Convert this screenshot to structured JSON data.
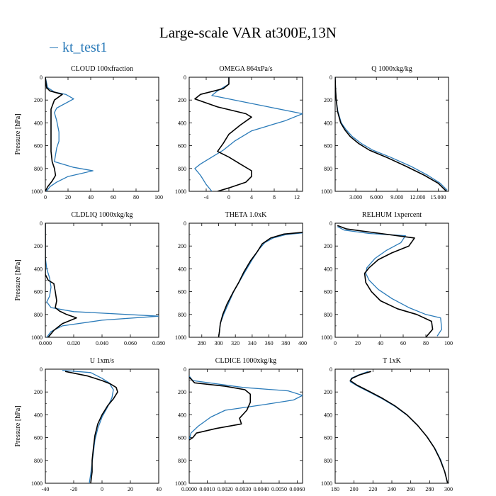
{
  "figure": {
    "title": "Large-scale VAR at300E,13N"
  },
  "legend": {
    "label": "kt_test1",
    "color": "#2b7bb9"
  },
  "colors": {
    "series_1": "#2b7bb9",
    "series_2": "#000000"
  },
  "chart_data": [
    {
      "type": "line",
      "title": "CLOUD  100xfraction",
      "ylabel": "Pressure [hPa]",
      "xlim": [
        0,
        100
      ],
      "ylim": [
        1000,
        0
      ],
      "xticks": [
        "0",
        "20",
        "40",
        "60",
        "80",
        "100"
      ],
      "yticks": [
        "0",
        "200",
        "400",
        "600",
        "800",
        "1000"
      ],
      "series": [
        {
          "name": "kt_test1",
          "color": "#2b7bb9",
          "x": [
            0,
            2,
            8,
            18,
            25,
            10,
            8,
            10,
            12,
            12,
            10,
            8,
            25,
            42,
            20,
            10,
            4,
            1
          ],
          "y": [
            0,
            90,
            130,
            150,
            190,
            270,
            310,
            380,
            480,
            560,
            620,
            740,
            790,
            820,
            870,
            920,
            960,
            1000
          ]
        },
        {
          "color": "#000000",
          "x": [
            0,
            1,
            4,
            15,
            8,
            5,
            5,
            5,
            5,
            5,
            6,
            8,
            9,
            6,
            2,
            0
          ],
          "y": [
            0,
            90,
            120,
            150,
            200,
            280,
            350,
            450,
            560,
            650,
            740,
            800,
            860,
            910,
            960,
            1000
          ]
        }
      ]
    },
    {
      "type": "line",
      "title": "OMEGA  864xPa/s",
      "xlim": [
        -7,
        13
      ],
      "ylim": [
        1000,
        0
      ],
      "xticks": [
        "-4",
        "0",
        "4",
        "8",
        "12"
      ],
      "yticks": [
        "0",
        "200",
        "400",
        "600",
        "800",
        "1000"
      ],
      "series": [
        {
          "name": "kt_test1",
          "color": "#2b7bb9",
          "x": [
            0,
            0,
            -2,
            -3,
            1,
            7,
            13,
            10,
            4,
            1,
            -1,
            -3,
            -5,
            -6,
            -5,
            -4,
            -3
          ],
          "y": [
            0,
            60,
            120,
            160,
            200,
            260,
            320,
            380,
            470,
            560,
            640,
            700,
            760,
            800,
            860,
            940,
            1000
          ]
        },
        {
          "color": "#000000",
          "x": [
            0,
            0,
            -1,
            -5,
            -6,
            -2,
            3,
            4,
            2,
            0,
            -1,
            -2,
            0,
            2,
            4,
            4,
            3,
            0,
            -2
          ],
          "y": [
            0,
            60,
            100,
            150,
            190,
            260,
            320,
            350,
            420,
            500,
            580,
            650,
            700,
            760,
            820,
            870,
            920,
            970,
            1000
          ]
        }
      ]
    },
    {
      "type": "line",
      "title": "Q  1000xkg/kg",
      "xlim": [
        0,
        16.5
      ],
      "ylim": [
        1000,
        0
      ],
      "xticks": [
        "3.000",
        "6.000",
        "9.000",
        "12.000",
        "15.000"
      ],
      "yticks": [
        "0",
        "200",
        "400",
        "600",
        "800",
        "1000"
      ],
      "series": [
        {
          "name": "kt_test1",
          "color": "#2b7bb9",
          "x": [
            0,
            0.05,
            0.15,
            0.4,
            0.9,
            1.6,
            2.5,
            3.8,
            5.5,
            8,
            11,
            13.5,
            15.3,
            16.3
          ],
          "y": [
            0,
            100,
            200,
            300,
            400,
            460,
            520,
            580,
            640,
            700,
            780,
            860,
            930,
            990
          ]
        },
        {
          "color": "#000000",
          "x": [
            0,
            0.05,
            0.15,
            0.35,
            0.8,
            1.4,
            2.2,
            3.4,
            5,
            7.4,
            10.3,
            13,
            15,
            16.2
          ],
          "y": [
            0,
            100,
            200,
            300,
            400,
            460,
            520,
            580,
            640,
            700,
            780,
            860,
            930,
            1000
          ]
        }
      ]
    },
    {
      "type": "line",
      "title": "CLDLIQ  1000xkg/kg",
      "ylabel": "Pressure [hPa]",
      "xlim": [
        0,
        0.08
      ],
      "ylim": [
        1000,
        0
      ],
      "xticks": [
        "0.000",
        "0.020",
        "0.040",
        "0.060",
        "0.080"
      ],
      "yticks": [
        "0",
        "200",
        "400",
        "600",
        "800",
        "1000"
      ],
      "series": [
        {
          "name": "kt_test1",
          "color": "#2b7bb9",
          "x": [
            0,
            0,
            0.001,
            0.003,
            0.004,
            0.003,
            0.001,
            0.004,
            0.02,
            0.08,
            0.04,
            0.012,
            0.004,
            0.001
          ],
          "y": [
            0,
            300,
            400,
            480,
            560,
            640,
            690,
            740,
            775,
            815,
            850,
            900,
            950,
            1000
          ]
        },
        {
          "color": "#000000",
          "x": [
            0,
            0,
            0.002,
            0.006,
            0.007,
            0.008,
            0.007,
            0.01,
            0.015,
            0.022,
            0.012,
            0.006,
            0.002
          ],
          "y": [
            0,
            450,
            500,
            530,
            600,
            680,
            740,
            770,
            800,
            830,
            880,
            940,
            1000
          ]
        }
      ]
    },
    {
      "type": "line",
      "title": "THETA  1.0xK",
      "xlim": [
        265,
        400
      ],
      "ylim": [
        1000,
        0
      ],
      "xticks": [
        "280",
        "300",
        "320",
        "340",
        "360",
        "380",
        "400"
      ],
      "yticks": [
        "0",
        "200",
        "400",
        "600",
        "800",
        "1000"
      ],
      "series": [
        {
          "name": "kt_test1",
          "color": "#2b7bb9",
          "x": [
            400,
            380,
            365,
            355,
            348,
            340,
            332,
            325,
            318,
            312,
            306,
            302,
            301,
            300
          ],
          "y": [
            85,
            100,
            130,
            170,
            230,
            320,
            420,
            510,
            600,
            700,
            800,
            880,
            950,
            1000
          ]
        },
        {
          "color": "#000000",
          "x": [
            400,
            378,
            362,
            352,
            346,
            338,
            330,
            324,
            317,
            310,
            305,
            302,
            301,
            300
          ],
          "y": [
            80,
            95,
            130,
            180,
            250,
            330,
            430,
            520,
            610,
            710,
            800,
            880,
            950,
            1000
          ]
        }
      ]
    },
    {
      "type": "line",
      "title": "RELHUM  1xpercent",
      "xlim": [
        0,
        100
      ],
      "ylim": [
        1000,
        0
      ],
      "xticks": [
        "0",
        "20",
        "40",
        "60",
        "80",
        "100"
      ],
      "yticks": [
        "0",
        "200",
        "400",
        "600",
        "800",
        "1000"
      ],
      "series": [
        {
          "name": "kt_test1",
          "color": "#2b7bb9",
          "x": [
            2,
            8,
            30,
            62,
            58,
            45,
            35,
            28,
            27,
            30,
            38,
            50,
            65,
            80,
            93,
            94,
            90
          ],
          "y": [
            30,
            60,
            90,
            110,
            170,
            240,
            310,
            390,
            440,
            500,
            580,
            660,
            740,
            800,
            830,
            930,
            990
          ]
        },
        {
          "color": "#000000",
          "x": [
            2,
            10,
            40,
            70,
            65,
            50,
            38,
            30,
            26,
            27,
            32,
            40,
            55,
            72,
            85,
            86,
            80
          ],
          "y": [
            20,
            50,
            90,
            130,
            200,
            260,
            320,
            390,
            440,
            520,
            600,
            680,
            750,
            800,
            860,
            930,
            1000
          ]
        }
      ]
    },
    {
      "type": "line",
      "title": "U  1xm/s",
      "ylabel": "Pressure [hPa]",
      "xlim": [
        -40,
        40
      ],
      "ylim": [
        1000,
        0
      ],
      "xticks": [
        "-40",
        "-20",
        "0",
        "20",
        "40"
      ],
      "yticks": [
        "0",
        "200",
        "400",
        "600",
        "800",
        "1000"
      ],
      "series": [
        {
          "name": "kt_test1",
          "color": "#2b7bb9",
          "x": [
            -28,
            -8,
            0,
            5,
            8,
            7,
            4,
            0,
            -3,
            -5,
            -6,
            -7,
            -8,
            -9
          ],
          "y": [
            10,
            30,
            80,
            120,
            180,
            250,
            330,
            420,
            520,
            620,
            720,
            820,
            920,
            1000
          ]
        },
        {
          "color": "#000000",
          "x": [
            -26,
            -10,
            0,
            6,
            10,
            11,
            8,
            4,
            0,
            -3,
            -5,
            -6,
            -7,
            -7,
            -8
          ],
          "y": [
            20,
            60,
            100,
            130,
            160,
            200,
            260,
            320,
            400,
            480,
            580,
            680,
            800,
            900,
            1000
          ]
        }
      ]
    },
    {
      "type": "line",
      "title": "CLDICE  1000xkg/kg",
      "xlim": [
        0,
        0.0063
      ],
      "ylim": [
        1000,
        0
      ],
      "xticks": [
        "0.0000",
        "0.0010",
        "0.0020",
        "0.0030",
        "0.0040",
        "0.0050",
        "0.0060"
      ],
      "yticks": [
        "0",
        "200",
        "400",
        "600",
        "800",
        "1000"
      ],
      "series": [
        {
          "name": "kt_test1",
          "color": "#2b7bb9",
          "x": [
            0,
            0.0002,
            0.003,
            0.0055,
            0.0063,
            0.0058,
            0.0042,
            0.002,
            0.0012,
            0.0005,
            0.0001,
            0
          ],
          "y": [
            60,
            100,
            160,
            190,
            230,
            270,
            310,
            360,
            420,
            500,
            560,
            620
          ]
        },
        {
          "color": "#000000",
          "x": [
            0,
            0.0003,
            0.002,
            0.0031,
            0.0034,
            0.0034,
            0.0032,
            0.0028,
            0.0029,
            0.0015,
            0.0004,
            0.0002,
            0
          ],
          "y": [
            70,
            120,
            150,
            180,
            220,
            290,
            360,
            430,
            480,
            520,
            560,
            600,
            620
          ]
        }
      ]
    },
    {
      "type": "line",
      "title": "T  1xK",
      "xlim": [
        180,
        300
      ],
      "ylim": [
        1000,
        0
      ],
      "xticks": [
        "180",
        "200",
        "220",
        "240",
        "260",
        "280",
        "300"
      ],
      "yticks": [
        "0",
        "200",
        "400",
        "600",
        "800",
        "1000"
      ],
      "series": [
        {
          "name": "kt_test1",
          "color": "#2b7bb9",
          "x": [
            215,
            205,
            197,
            196,
            204,
            216,
            230,
            244,
            257,
            268,
            278,
            286,
            292,
            296,
            299
          ],
          "y": [
            20,
            50,
            80,
            110,
            150,
            200,
            260,
            330,
            410,
            500,
            600,
            700,
            800,
            900,
            1000
          ]
        },
        {
          "color": "#000000",
          "x": [
            218,
            206,
            198,
            196,
            203,
            215,
            229,
            243,
            256,
            267,
            277,
            285,
            291,
            296,
            299
          ],
          "y": [
            20,
            50,
            80,
            100,
            140,
            190,
            250,
            320,
            400,
            490,
            590,
            690,
            790,
            900,
            1000
          ]
        }
      ]
    }
  ]
}
